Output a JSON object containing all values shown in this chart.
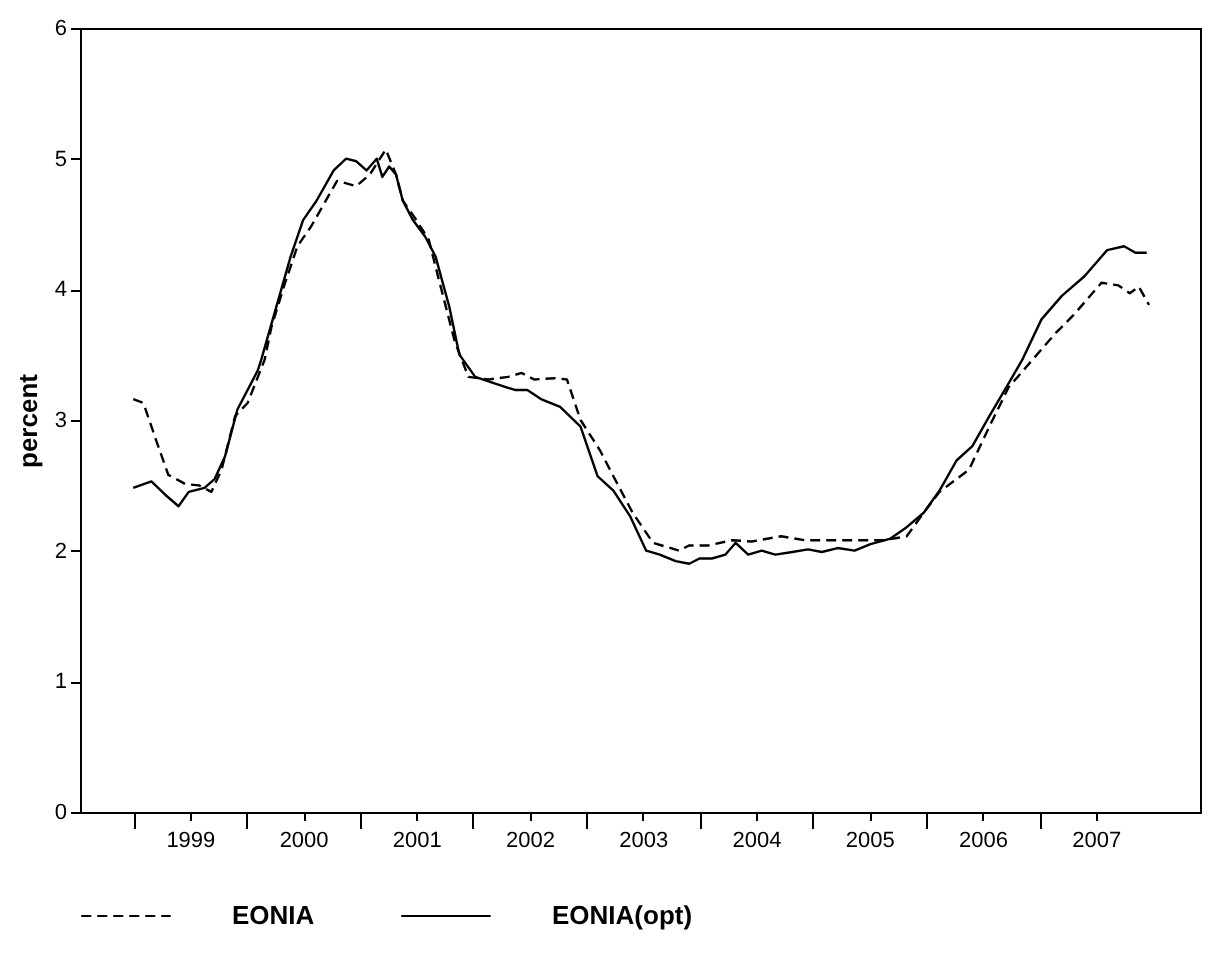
{
  "chart_data": {
    "type": "line",
    "ylabel": "percent",
    "xlim": [
      1998.53,
      2008.42
    ],
    "ylim": [
      0,
      6
    ],
    "yticks": [
      0,
      1,
      2,
      3,
      4,
      5,
      6
    ],
    "xticks": [
      {
        "value": 1999,
        "label": null
      },
      {
        "value": 1999.5,
        "label": "1999"
      },
      {
        "value": 2000,
        "label": null
      },
      {
        "value": 2000.5,
        "label": "2000"
      },
      {
        "value": 2001,
        "label": null
      },
      {
        "value": 2001.5,
        "label": "2001"
      },
      {
        "value": 2002,
        "label": null
      },
      {
        "value": 2002.5,
        "label": "2002"
      },
      {
        "value": 2003,
        "label": null
      },
      {
        "value": 2003.5,
        "label": "2003"
      },
      {
        "value": 2004,
        "label": null
      },
      {
        "value": 2004.5,
        "label": "2004"
      },
      {
        "value": 2005,
        "label": null
      },
      {
        "value": 2005.5,
        "label": "2005"
      },
      {
        "value": 2006,
        "label": null
      },
      {
        "value": 2006.5,
        "label": "2006"
      },
      {
        "value": 2007,
        "label": null
      },
      {
        "value": 2007.5,
        "label": "2007"
      }
    ],
    "grid": false,
    "legend": "bottom",
    "marker": "none",
    "series": [
      {
        "name": "EONIA",
        "color": "#000000",
        "line_style": "dashed",
        "x": [
          1999.0,
          1999.09,
          1999.2,
          1999.31,
          1999.46,
          1999.58,
          1999.69,
          1999.78,
          1999.9,
          2000.01,
          2000.16,
          2000.22,
          2000.33,
          2000.45,
          2000.57,
          2000.8,
          2000.97,
          2001.09,
          2001.23,
          2001.32,
          2001.38,
          2001.5,
          2001.61,
          2001.7,
          2001.84,
          2001.96,
          2002.14,
          2002.31,
          2002.43,
          2002.54,
          2002.72,
          2002.83,
          2002.95,
          2003.12,
          2003.24,
          2003.41,
          2003.59,
          2003.82,
          2003.91,
          2004.08,
          2004.29,
          2004.46,
          2004.72,
          2004.93,
          2005.16,
          2005.39,
          2005.63,
          2005.83,
          2005.98,
          2006.12,
          2006.38,
          2006.56,
          2006.73,
          2007.14,
          2007.3,
          2007.55,
          2007.7,
          2007.8,
          2007.88,
          2007.97
        ],
        "values": [
          3.16,
          3.13,
          2.85,
          2.58,
          2.51,
          2.5,
          2.45,
          2.62,
          3.03,
          3.13,
          3.46,
          3.71,
          4.02,
          4.33,
          4.48,
          4.83,
          4.79,
          4.88,
          5.07,
          4.88,
          4.68,
          4.53,
          4.38,
          4.07,
          3.6,
          3.33,
          3.31,
          3.33,
          3.36,
          3.31,
          3.32,
          3.31,
          3.0,
          2.77,
          2.57,
          2.29,
          2.06,
          2.0,
          2.04,
          2.04,
          2.08,
          2.07,
          2.11,
          2.08,
          2.08,
          2.08,
          2.08,
          2.11,
          2.29,
          2.45,
          2.62,
          2.95,
          3.25,
          3.66,
          3.8,
          4.05,
          4.03,
          3.97,
          4.02,
          3.88
        ]
      },
      {
        "name": "EONIA(opt)",
        "color": "#000000",
        "line_style": "solid",
        "x": [
          1999.0,
          1999.16,
          1999.28,
          1999.4,
          1999.49,
          1999.63,
          1999.72,
          1999.81,
          1999.92,
          2000.1,
          2000.13,
          2000.39,
          2000.5,
          2000.62,
          2000.77,
          2000.88,
          2000.97,
          2001.06,
          2001.15,
          2001.2,
          2001.26,
          2001.32,
          2001.38,
          2001.47,
          2001.58,
          2001.67,
          2001.79,
          2001.88,
          2002.02,
          2002.19,
          2002.37,
          2002.48,
          2002.6,
          2002.77,
          2002.95,
          2003.1,
          2003.24,
          2003.39,
          2003.53,
          2003.65,
          2003.79,
          2003.91,
          2004.0,
          2004.11,
          2004.23,
          2004.32,
          2004.43,
          2004.55,
          2004.67,
          2004.82,
          2004.96,
          2005.08,
          2005.22,
          2005.37,
          2005.51,
          2005.68,
          2005.83,
          2005.98,
          2006.12,
          2006.27,
          2006.41,
          2006.56,
          2006.73,
          2006.85,
          2007.02,
          2007.2,
          2007.4,
          2007.6,
          2007.75,
          2007.85,
          2007.95
        ],
        "values": [
          2.48,
          2.53,
          2.43,
          2.34,
          2.45,
          2.48,
          2.55,
          2.72,
          3.08,
          3.38,
          3.46,
          4.25,
          4.53,
          4.68,
          4.91,
          5.0,
          4.98,
          4.91,
          5.0,
          4.86,
          4.94,
          4.88,
          4.68,
          4.53,
          4.4,
          4.25,
          3.87,
          3.5,
          3.33,
          3.28,
          3.23,
          3.23,
          3.16,
          3.1,
          2.95,
          2.57,
          2.46,
          2.26,
          2.0,
          1.97,
          1.92,
          1.9,
          1.94,
          1.94,
          1.97,
          2.06,
          1.97,
          2.0,
          1.97,
          1.99,
          2.01,
          1.99,
          2.02,
          2.0,
          2.05,
          2.09,
          2.18,
          2.29,
          2.46,
          2.69,
          2.8,
          3.03,
          3.28,
          3.46,
          3.77,
          3.95,
          4.1,
          4.3,
          4.33,
          4.28,
          4.28
        ]
      }
    ]
  }
}
